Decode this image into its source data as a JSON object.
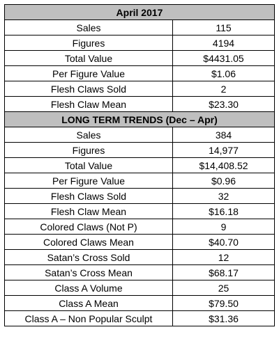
{
  "sections": [
    {
      "title": "April 2017",
      "rows": [
        [
          "Sales",
          "115"
        ],
        [
          "Figures",
          "4194"
        ],
        [
          "Total Value",
          "$4431.05"
        ],
        [
          "Per Figure Value",
          "$1.06"
        ],
        [
          "Flesh Claws Sold",
          "2"
        ],
        [
          "Flesh Claw Mean",
          "$23.30"
        ]
      ]
    },
    {
      "title": "LONG TERM TRENDS (Dec – Apr)",
      "rows": [
        [
          "Sales",
          "384"
        ],
        [
          "Figures",
          "14,977"
        ],
        [
          "Total Value",
          "$14,408.52"
        ],
        [
          "Per Figure Value",
          "$0.96"
        ],
        [
          "Flesh Claws Sold",
          "32"
        ],
        [
          "Flesh Claw Mean",
          "$16.18"
        ],
        [
          "Colored Claws (Not P)",
          "9"
        ],
        [
          "Colored Claws Mean",
          "$40.70"
        ],
        [
          "Satan’s Cross Sold",
          "12"
        ],
        [
          "Satan’s Cross Mean",
          "$68.17"
        ],
        [
          "Class A Volume",
          "25"
        ],
        [
          "Class A Mean",
          "$79.50"
        ],
        [
          "Class A – Non Popular Sculpt",
          "$31.36"
        ]
      ]
    }
  ]
}
